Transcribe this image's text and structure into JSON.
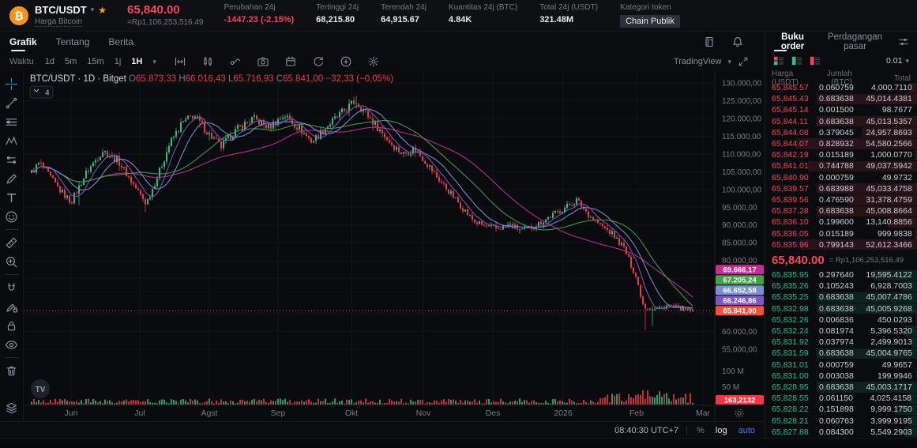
{
  "colors": {
    "up": "#2ebd85",
    "down": "#f23645",
    "ask_red": "#f6465d",
    "bid_green": "#2ebd85",
    "brand_orange": "#f7a600",
    "btc_orange": "#f7931a",
    "link_blue": "#3a7dff",
    "price_line": "#f4503a"
  },
  "header": {
    "pair": "BTC/USDT",
    "pair_subtitle": "Harga Bitcoin",
    "price": "65,840.00",
    "price_idr": "=Rp1,106,253,516.49",
    "stats": [
      {
        "label": "Perubahan 24j",
        "value": "-1447.23 (-2.15%)",
        "type": "down"
      },
      {
        "label": "Tertinggi 24j",
        "value": "68,215.80",
        "type": "plain"
      },
      {
        "label": "Terendah 24j",
        "value": "64,915.67",
        "type": "plain"
      },
      {
        "label": "Kuantitas 24j (BTC)",
        "value": "4.84K",
        "type": "plain"
      },
      {
        "label": "Total 24j (USDT)",
        "value": "321.48M",
        "type": "plain"
      },
      {
        "label": "Kategori token",
        "value": "Chain Publik",
        "type": "chip"
      }
    ]
  },
  "page_tabs": {
    "items": [
      "Grafik",
      "Tentang",
      "Berita"
    ],
    "active": "Grafik"
  },
  "chart_header_icons": [
    "journal-book",
    "alert-bell"
  ],
  "chart_toolbar": {
    "time_label": "Waktu",
    "intervals": [
      "1d",
      "5m",
      "15m",
      "1j"
    ],
    "active_interval": "1H",
    "icons": [
      "interval-range",
      "candle-style",
      "indicators",
      "snapshot-camera",
      "compare-calendar",
      "replay-refresh",
      "add-circle",
      "settings-gear"
    ],
    "branding": "TradingView"
  },
  "left_toolbar": {
    "active": "crosshair",
    "groups": [
      [
        "crosshair",
        "trend-line",
        "horizontal-lines",
        "xabcd-pattern",
        "projection",
        "brush",
        "text-tool",
        "emoji"
      ],
      [
        "ruler",
        "zoom-in"
      ],
      [
        "magnet",
        "drawing-lock",
        "lock-all",
        "hide-drawings"
      ],
      [
        "trash"
      ],
      [
        "object-tree"
      ]
    ]
  },
  "chart": {
    "legend": {
      "title": "BTC/USDT · 1D · Bitget",
      "o": "65.873,33",
      "h": "66.016,43",
      "l": "65.716,93",
      "c": "65.841,00",
      "change": "−32,33 (−0,05%)"
    },
    "indicator_count": "4",
    "watermark": "TV"
  },
  "chart_data": {
    "type": "candlestick",
    "symbol": "BTC/USDT",
    "interval": "1D",
    "exchange": "Bitget",
    "scale": "log",
    "x_ticks": [
      "Jun",
      "Jul",
      "Agst",
      "Sep",
      "Okt",
      "Nov",
      "Des",
      "2026",
      "Feb",
      "Mar"
    ],
    "y_axis": {
      "grid_values": [
        130000,
        125000,
        120000,
        115000,
        110000,
        105000,
        100000,
        95000,
        90000,
        85000,
        80000,
        75000,
        70000,
        65000,
        60000,
        55000
      ],
      "ticks": [
        {
          "value": 130000,
          "label": "130.000,00"
        },
        {
          "value": 125000,
          "label": "125.000,00"
        },
        {
          "value": 120000,
          "label": "120.000,00"
        },
        {
          "value": 115000,
          "label": "115.000,00"
        },
        {
          "value": 110000,
          "label": "110.000,00"
        },
        {
          "value": 105000,
          "label": "105.000,00"
        },
        {
          "value": 100000,
          "label": "100.000,00"
        },
        {
          "value": 95000,
          "label": "95.000,00"
        },
        {
          "value": 90000,
          "label": "90.000,00"
        },
        {
          "value": 85000,
          "label": "85.000,00"
        },
        {
          "value": 80000,
          "label": "80.000,00"
        },
        {
          "value": 60000,
          "label": "60.000,00"
        },
        {
          "value": 55000,
          "label": "55.000,00"
        }
      ]
    },
    "price_path": [
      [
        0,
        102000
      ],
      [
        20,
        107500
      ],
      [
        45,
        100000
      ],
      [
        60,
        96500
      ],
      [
        80,
        105000
      ],
      [
        100,
        111000
      ],
      [
        120,
        108000
      ],
      [
        140,
        101000
      ],
      [
        155,
        96000
      ],
      [
        170,
        104000
      ],
      [
        185,
        113000
      ],
      [
        200,
        118500
      ],
      [
        215,
        121000
      ],
      [
        235,
        115500
      ],
      [
        250,
        112000
      ],
      [
        270,
        117000
      ],
      [
        290,
        120000
      ],
      [
        310,
        117500
      ],
      [
        330,
        121000
      ],
      [
        350,
        117000
      ],
      [
        365,
        113500
      ],
      [
        385,
        118000
      ],
      [
        405,
        122000
      ],
      [
        420,
        125000
      ],
      [
        435,
        121000
      ],
      [
        450,
        117000
      ],
      [
        465,
        113000
      ],
      [
        480,
        110000
      ],
      [
        495,
        111500
      ],
      [
        510,
        107500
      ],
      [
        525,
        103000
      ],
      [
        540,
        99000
      ],
      [
        555,
        95000
      ],
      [
        570,
        91000
      ],
      [
        585,
        89500
      ],
      [
        600,
        89000
      ],
      [
        615,
        90000
      ],
      [
        630,
        88500
      ],
      [
        645,
        89500
      ],
      [
        660,
        91500
      ],
      [
        675,
        93500
      ],
      [
        690,
        95500
      ],
      [
        700,
        97000
      ],
      [
        715,
        93000
      ],
      [
        730,
        90000
      ],
      [
        745,
        87500
      ],
      [
        760,
        83500
      ],
      [
        775,
        75500
      ],
      [
        785,
        67000
      ],
      [
        800,
        66300
      ],
      [
        815,
        67400
      ],
      [
        830,
        66600
      ],
      [
        840,
        65900
      ]
    ],
    "current_price": 65841.0,
    "current_price_label": "65.841,00",
    "ma_labels": [
      {
        "name": "ma-magenta",
        "color": "#c32d94",
        "value": 69666.17,
        "label": "69.666,17"
      },
      {
        "name": "ma-green",
        "color": "#43a047",
        "value": 67205.24,
        "label": "67.205,24"
      },
      {
        "name": "ma-blue",
        "color": "#7c90d0",
        "value": 66652.58,
        "label": "66.652,58"
      },
      {
        "name": "ma-purple",
        "color": "#7e57c2",
        "value": 66246.86,
        "label": "66.246,86"
      }
    ],
    "volume_ticks": [
      "100 M",
      "50 M"
    ],
    "volume_label": "163,2132"
  },
  "chart_footer": {
    "time": "08:40:30 UTC+7",
    "percent": "%",
    "log": "log",
    "auto": "auto",
    "active_scale": "log"
  },
  "orderbook": {
    "tabs": [
      "Buku order",
      "Perdagangan pasar"
    ],
    "active_tab": "Buku order",
    "view_modes": [
      "ob-both",
      "ob-bids",
      "ob-asks"
    ],
    "precision": "0.01",
    "columns": [
      "Harga (USDT)",
      "Jumlah (BTC)",
      "Total"
    ],
    "asks": [
      {
        "p": "65,845.57",
        "a": "0.060759",
        "t": "4,000.7110"
      },
      {
        "p": "65,845.43",
        "a": "0.683638",
        "t": "45,014.4381"
      },
      {
        "p": "65,845.14",
        "a": "0.001500",
        "t": "98.7677"
      },
      {
        "p": "65,844.11",
        "a": "0.683638",
        "t": "45,013.5357"
      },
      {
        "p": "65,844.08",
        "a": "0.379045",
        "t": "24,957.8693"
      },
      {
        "p": "65,844.07",
        "a": "0.828932",
        "t": "54,580.2566"
      },
      {
        "p": "65,842.19",
        "a": "0.015189",
        "t": "1,000.0770"
      },
      {
        "p": "65,841.01",
        "a": "0.744788",
        "t": "49,037.5942"
      },
      {
        "p": "65,840.90",
        "a": "0.000759",
        "t": "49.9732"
      },
      {
        "p": "65,839.57",
        "a": "0.683988",
        "t": "45,033.4758"
      },
      {
        "p": "65,839.56",
        "a": "0.476590",
        "t": "31,378.4759"
      },
      {
        "p": "65,837.28",
        "a": "0.683638",
        "t": "45,008.8664"
      },
      {
        "p": "65,836.10",
        "a": "0.199600",
        "t": "13,140.8856"
      },
      {
        "p": "65,836.05",
        "a": "0.015189",
        "t": "999.9838"
      },
      {
        "p": "65,835.96",
        "a": "0.799143",
        "t": "52,612.3466"
      }
    ],
    "mid": {
      "price": "65,840.00",
      "idr": "= Rp1,106,253,516.49"
    },
    "bids": [
      {
        "p": "65,835.95",
        "a": "0.297640",
        "t": "19,595.4122"
      },
      {
        "p": "65,835.26",
        "a": "0.105243",
        "t": "6,928.7003"
      },
      {
        "p": "65,835.25",
        "a": "0.683638",
        "t": "45,007.4786"
      },
      {
        "p": "65,832.98",
        "a": "0.683638",
        "t": "45,005.9268"
      },
      {
        "p": "65,832.26",
        "a": "0.006836",
        "t": "450.0293"
      },
      {
        "p": "65,832.24",
        "a": "0.081974",
        "t": "5,396.5320"
      },
      {
        "p": "65,831.92",
        "a": "0.037974",
        "t": "2,499.9013"
      },
      {
        "p": "65,831.59",
        "a": "0.683638",
        "t": "45,004.9765"
      },
      {
        "p": "65,831.01",
        "a": "0.000759",
        "t": "49.9657"
      },
      {
        "p": "65,831.00",
        "a": "0.003038",
        "t": "199.9946"
      },
      {
        "p": "65,828.95",
        "a": "0.683638",
        "t": "45,003.1717"
      },
      {
        "p": "65,828.55",
        "a": "0.061150",
        "t": "4,025.4158"
      },
      {
        "p": "65,828.22",
        "a": "0.151898",
        "t": "9,999.1750"
      },
      {
        "p": "65,828.21",
        "a": "0.060763",
        "t": "3,999.9195"
      },
      {
        "p": "65,827.88",
        "a": "0.084300",
        "t": "5,549.2903"
      }
    ]
  }
}
